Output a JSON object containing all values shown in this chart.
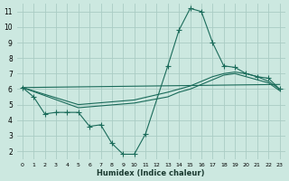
{
  "xlabel": "Humidex (Indice chaleur)",
  "background_color": "#cce8e0",
  "grid_color": "#aaccc4",
  "line_color": "#1a6b5a",
  "xlim": [
    -0.5,
    23.5
  ],
  "ylim": [
    1.5,
    11.5
  ],
  "xticks": [
    0,
    1,
    2,
    3,
    4,
    5,
    6,
    7,
    8,
    9,
    10,
    11,
    12,
    13,
    14,
    15,
    16,
    17,
    18,
    19,
    20,
    21,
    22,
    23
  ],
  "yticks": [
    2,
    3,
    4,
    5,
    6,
    7,
    8,
    9,
    10,
    11
  ],
  "jagged_x": [
    0,
    1,
    2,
    3,
    4,
    5,
    6,
    7,
    8,
    9,
    10,
    11,
    13,
    14,
    15,
    16,
    17,
    18,
    19,
    20,
    21,
    22,
    23
  ],
  "jagged_y": [
    6.1,
    5.5,
    4.4,
    4.5,
    4.5,
    4.5,
    3.6,
    3.7,
    2.5,
    1.8,
    1.8,
    3.1,
    7.5,
    9.8,
    11.2,
    11.0,
    9.0,
    7.5,
    7.4,
    7.0,
    6.8,
    6.7,
    6.0
  ],
  "curve1_x": [
    0,
    5,
    10,
    13,
    14,
    15,
    16,
    17,
    18,
    19,
    20,
    21,
    22,
    23
  ],
  "curve1_y": [
    6.1,
    5.0,
    5.3,
    5.8,
    6.0,
    6.2,
    6.5,
    6.8,
    7.0,
    7.1,
    7.0,
    6.8,
    6.5,
    6.0
  ],
  "curve2_x": [
    0,
    5,
    10,
    13,
    14,
    15,
    16,
    17,
    18,
    19,
    20,
    21,
    22,
    23
  ],
  "curve2_y": [
    6.1,
    4.8,
    5.1,
    5.5,
    5.8,
    6.0,
    6.3,
    6.6,
    6.9,
    7.0,
    6.8,
    6.6,
    6.4,
    5.9
  ],
  "line_x": [
    0,
    23
  ],
  "line_y": [
    6.1,
    6.3
  ]
}
